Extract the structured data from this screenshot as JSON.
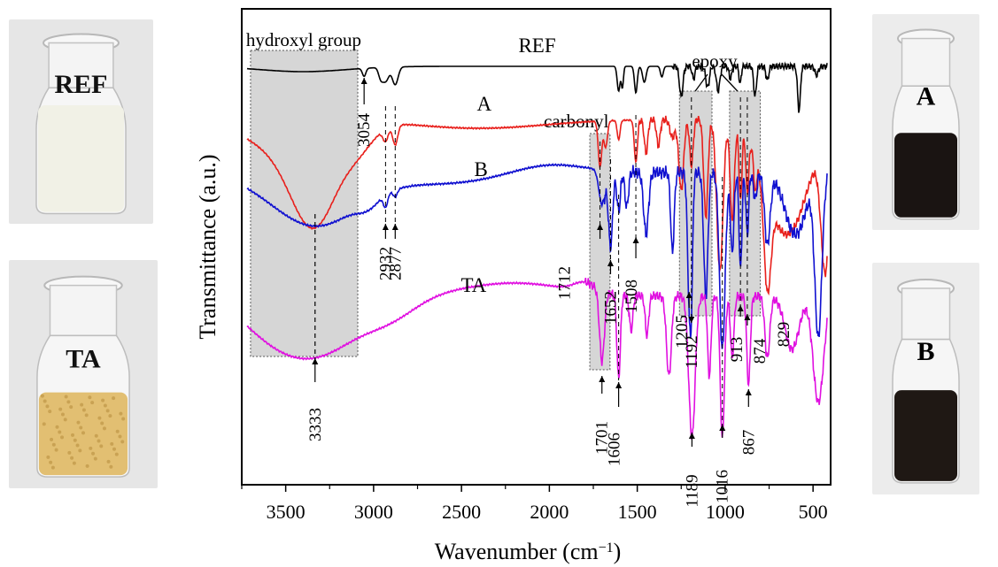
{
  "photos": [
    {
      "id": "ref",
      "label": "REF",
      "content": "liquid",
      "content_color": "#f1f1e6"
    },
    {
      "id": "ta",
      "label": "TA",
      "content": "powder",
      "content_color": "#e2bf72"
    },
    {
      "id": "a",
      "label": "A",
      "content": "dark",
      "content_color": "#1a1412"
    },
    {
      "id": "b",
      "label": "B",
      "content": "dark",
      "content_color": "#1f1814"
    }
  ],
  "chart_data": {
    "type": "line",
    "xlabel": "Wavenumber (cm",
    "xlabel_sup": "−1",
    "xlabel_close": ")",
    "ylabel": "Transmittance (a.u.)",
    "xlim": [
      3750,
      400
    ],
    "x_reversed": true,
    "xticks": [
      3500,
      3000,
      2500,
      2000,
      1500,
      1000,
      500
    ],
    "grid": false,
    "series": [
      {
        "name": "REF",
        "color": "#000000"
      },
      {
        "name": "A",
        "color": "#e8201c"
      },
      {
        "name": "B",
        "color": "#1010d0"
      },
      {
        "name": "TA",
        "color": "#e010e0"
      }
    ],
    "regions": [
      {
        "label": "hydroxyl group",
        "x_range": [
          3700,
          3090
        ]
      },
      {
        "label": "carbonyl",
        "x_range": [
          1770,
          1655
        ]
      },
      {
        "label": "epoxy",
        "x_range": [
          1260,
          1075
        ]
      },
      {
        "label": "epoxy",
        "x_range": [
          975,
          800
        ]
      }
    ],
    "region_title_epoxy": "epoxy",
    "peaks": [
      {
        "label": "3054",
        "x": 3054
      },
      {
        "label": "2932",
        "x": 2932
      },
      {
        "label": "2877",
        "x": 2877
      },
      {
        "label": "3333",
        "x": 3333
      },
      {
        "label": "1712",
        "x": 1712
      },
      {
        "label": "1652",
        "x": 1652
      },
      {
        "label": "1701",
        "x": 1701
      },
      {
        "label": "1606",
        "x": 1606
      },
      {
        "label": "1508",
        "x": 1508
      },
      {
        "label": "1205",
        "x": 1205
      },
      {
        "label": "1192",
        "x": 1192
      },
      {
        "label": "1189",
        "x": 1189
      },
      {
        "label": "1016",
        "x": 1016
      },
      {
        "label": "913",
        "x": 913
      },
      {
        "label": "874",
        "x": 874
      },
      {
        "label": "867",
        "x": 867
      },
      {
        "label": "829",
        "x": 829
      }
    ]
  }
}
